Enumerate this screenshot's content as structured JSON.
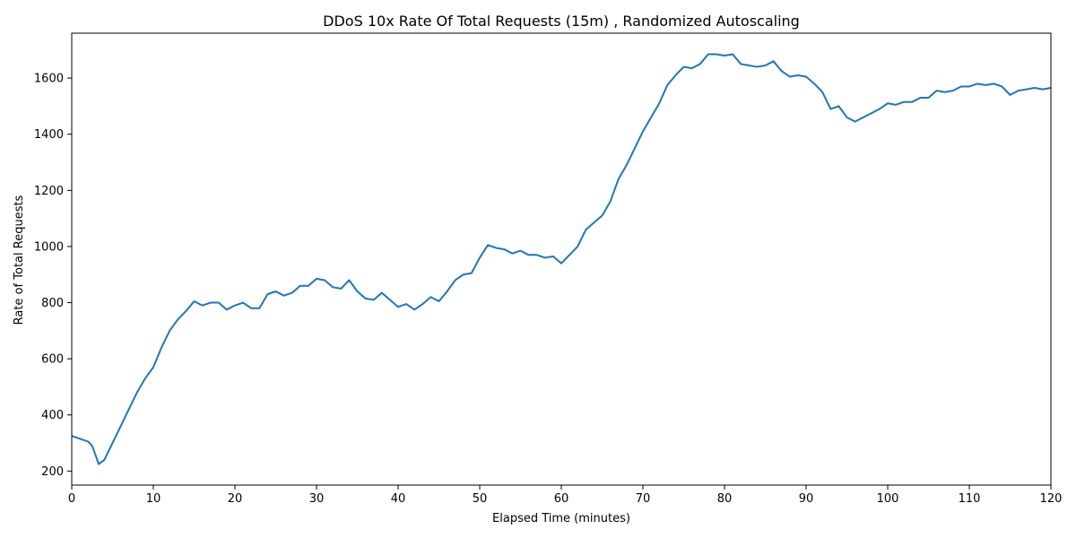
{
  "chart_data": {
    "type": "line",
    "title": "DDoS 10x Rate Of Total Requests (15m) , Randomized Autoscaling",
    "xlabel": "Elapsed Time (minutes)",
    "ylabel": "Rate of Total Requests",
    "xlim": [
      0,
      120
    ],
    "ylim": [
      150,
      1760
    ],
    "xticks": [
      0,
      10,
      20,
      30,
      40,
      50,
      60,
      70,
      80,
      90,
      100,
      110,
      120
    ],
    "yticks": [
      200,
      400,
      600,
      800,
      1000,
      1200,
      1400,
      1600
    ],
    "grid": false,
    "legend": "none",
    "series": [
      {
        "color": "#1f77b4",
        "x": [
          0,
          1,
          2,
          2.5,
          3,
          3.3,
          4,
          5,
          6,
          7,
          8,
          9,
          10,
          11,
          12,
          13,
          14,
          15,
          16,
          17,
          18,
          19,
          20,
          21,
          22,
          23,
          24,
          25,
          26,
          27,
          28,
          29,
          30,
          31,
          32,
          33,
          34,
          35,
          36,
          37,
          38,
          39,
          40,
          41,
          42,
          43,
          44,
          45,
          46,
          47,
          48,
          49,
          50,
          51,
          52,
          53,
          54,
          55,
          56,
          57,
          58,
          59,
          60,
          61,
          62,
          63,
          64,
          65,
          66,
          67,
          68,
          69,
          70,
          71,
          72,
          73,
          74,
          75,
          76,
          77,
          78,
          79,
          80,
          81,
          82,
          83,
          84,
          85,
          86,
          87,
          88,
          89,
          90,
          91,
          92,
          93,
          94,
          95,
          96,
          97,
          98,
          99,
          100,
          101,
          102,
          103,
          104,
          105,
          106,
          107,
          108,
          109,
          110,
          111,
          112,
          113,
          114,
          115,
          116,
          117,
          118,
          119,
          120
        ],
        "y": [
          325,
          315,
          305,
          290,
          250,
          225,
          240,
          300,
          360,
          420,
          480,
          530,
          570,
          640,
          700,
          740,
          770,
          805,
          790,
          800,
          800,
          775,
          790,
          800,
          780,
          780,
          830,
          840,
          825,
          835,
          860,
          860,
          885,
          880,
          855,
          850,
          880,
          840,
          815,
          810,
          835,
          810,
          785,
          795,
          775,
          795,
          820,
          805,
          840,
          880,
          900,
          905,
          960,
          1005,
          995,
          990,
          975,
          985,
          970,
          970,
          960,
          965,
          940,
          970,
          1000,
          1060,
          1085,
          1110,
          1160,
          1240,
          1290,
          1350,
          1410,
          1460,
          1510,
          1575,
          1610,
          1640,
          1635,
          1650,
          1685,
          1685,
          1680,
          1685,
          1650,
          1645,
          1640,
          1645,
          1660,
          1625,
          1605,
          1610,
          1605,
          1580,
          1550,
          1490,
          1500,
          1460,
          1445,
          1460,
          1475,
          1490,
          1510,
          1505,
          1515,
          1515,
          1530,
          1530,
          1555,
          1550,
          1555,
          1570,
          1570,
          1580,
          1575,
          1580,
          1570,
          1540,
          1555,
          1560,
          1565,
          1560,
          1565
        ]
      }
    ]
  }
}
